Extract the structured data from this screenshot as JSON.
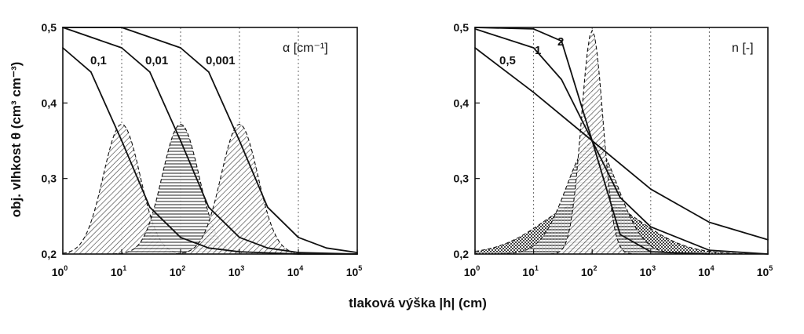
{
  "chart_data": [
    {
      "type": "line",
      "panel": "left",
      "parameter_label": "α [cm⁻¹]",
      "xscale": "log",
      "xlim": [
        1,
        100000
      ],
      "ylim": [
        0.2,
        0.5
      ],
      "x_ticks": [
        1,
        10,
        100,
        1000,
        10000,
        100000
      ],
      "x_tick_labels": [
        {
          "base": "10",
          "exp": "0"
        },
        {
          "base": "10",
          "exp": "1"
        },
        {
          "base": "10",
          "exp": "2"
        },
        {
          "base": "10",
          "exp": "3"
        },
        {
          "base": "10",
          "exp": "4"
        },
        {
          "base": "10",
          "exp": "5"
        }
      ],
      "y_ticks": [
        "0,2",
        "0,3",
        "0,4",
        "0,5"
      ],
      "y_tick_values": [
        0.2,
        0.3,
        0.4,
        0.5
      ],
      "grid": "vertical dotted at decades",
      "series": [
        {
          "name": "0,1",
          "x": [
            1,
            3,
            10,
            30,
            100,
            300,
            1000,
            10000,
            100000
          ],
          "values": [
            0.473,
            0.441,
            0.35,
            0.262,
            0.222,
            0.208,
            0.203,
            0.2,
            0.2
          ],
          "peak": {
            "x": 10,
            "y": 0.372
          }
        },
        {
          "name": "0,01",
          "x": [
            1,
            10,
            30,
            100,
            300,
            1000,
            3000,
            10000,
            100000
          ],
          "values": [
            0.5,
            0.473,
            0.441,
            0.35,
            0.262,
            0.222,
            0.208,
            0.202,
            0.2
          ],
          "peak": {
            "x": 100,
            "y": 0.372
          }
        },
        {
          "name": "0,001",
          "x": [
            1,
            10,
            100,
            300,
            1000,
            3000,
            10000,
            30000,
            100000
          ],
          "values": [
            0.5,
            0.5,
            0.473,
            0.441,
            0.35,
            0.262,
            0.222,
            0.208,
            0.202
          ],
          "peak": {
            "x": 1000,
            "y": 0.372
          }
        }
      ]
    },
    {
      "type": "line",
      "panel": "right",
      "parameter_label": "n [-]",
      "xscale": "log",
      "xlim": [
        1,
        100000
      ],
      "ylim": [
        0.2,
        0.5
      ],
      "x_ticks": [
        1,
        10,
        100,
        1000,
        10000,
        100000
      ],
      "x_tick_labels": [
        {
          "base": "10",
          "exp": "0"
        },
        {
          "base": "10",
          "exp": "1"
        },
        {
          "base": "10",
          "exp": "2"
        },
        {
          "base": "10",
          "exp": "3"
        },
        {
          "base": "10",
          "exp": "4"
        },
        {
          "base": "10",
          "exp": "5"
        }
      ],
      "y_ticks": [
        "0,2",
        "0,3",
        "0,4",
        "0,5"
      ],
      "y_tick_values": [
        0.2,
        0.3,
        0.4,
        0.5
      ],
      "grid": "vertical dotted at decades",
      "series": [
        {
          "name": "0,5",
          "x": [
            1,
            10,
            100,
            1000,
            10000,
            100000
          ],
          "values": [
            0.473,
            0.414,
            0.35,
            0.286,
            0.242,
            0.219
          ],
          "peak": {
            "x": 100,
            "y": 0.272
          }
        },
        {
          "name": "1",
          "x": [
            1,
            10,
            30,
            100,
            300,
            1000,
            10000,
            100000
          ],
          "values": [
            0.498,
            0.473,
            0.431,
            0.35,
            0.275,
            0.236,
            0.205,
            0.2
          ],
          "peak": {
            "x": 100,
            "y": 0.347
          }
        },
        {
          "name": "2",
          "x": [
            1,
            10,
            30,
            100,
            300,
            1000,
            10000
          ],
          "values": [
            0.5,
            0.498,
            0.482,
            0.35,
            0.226,
            0.203,
            0.2
          ],
          "peak": {
            "x": 100,
            "y": 0.496
          }
        }
      ]
    }
  ],
  "xlabel": "tlaková výška |h| (cm)",
  "ylabel": "obj. vlhkost θ (cm³ cm⁻³)"
}
